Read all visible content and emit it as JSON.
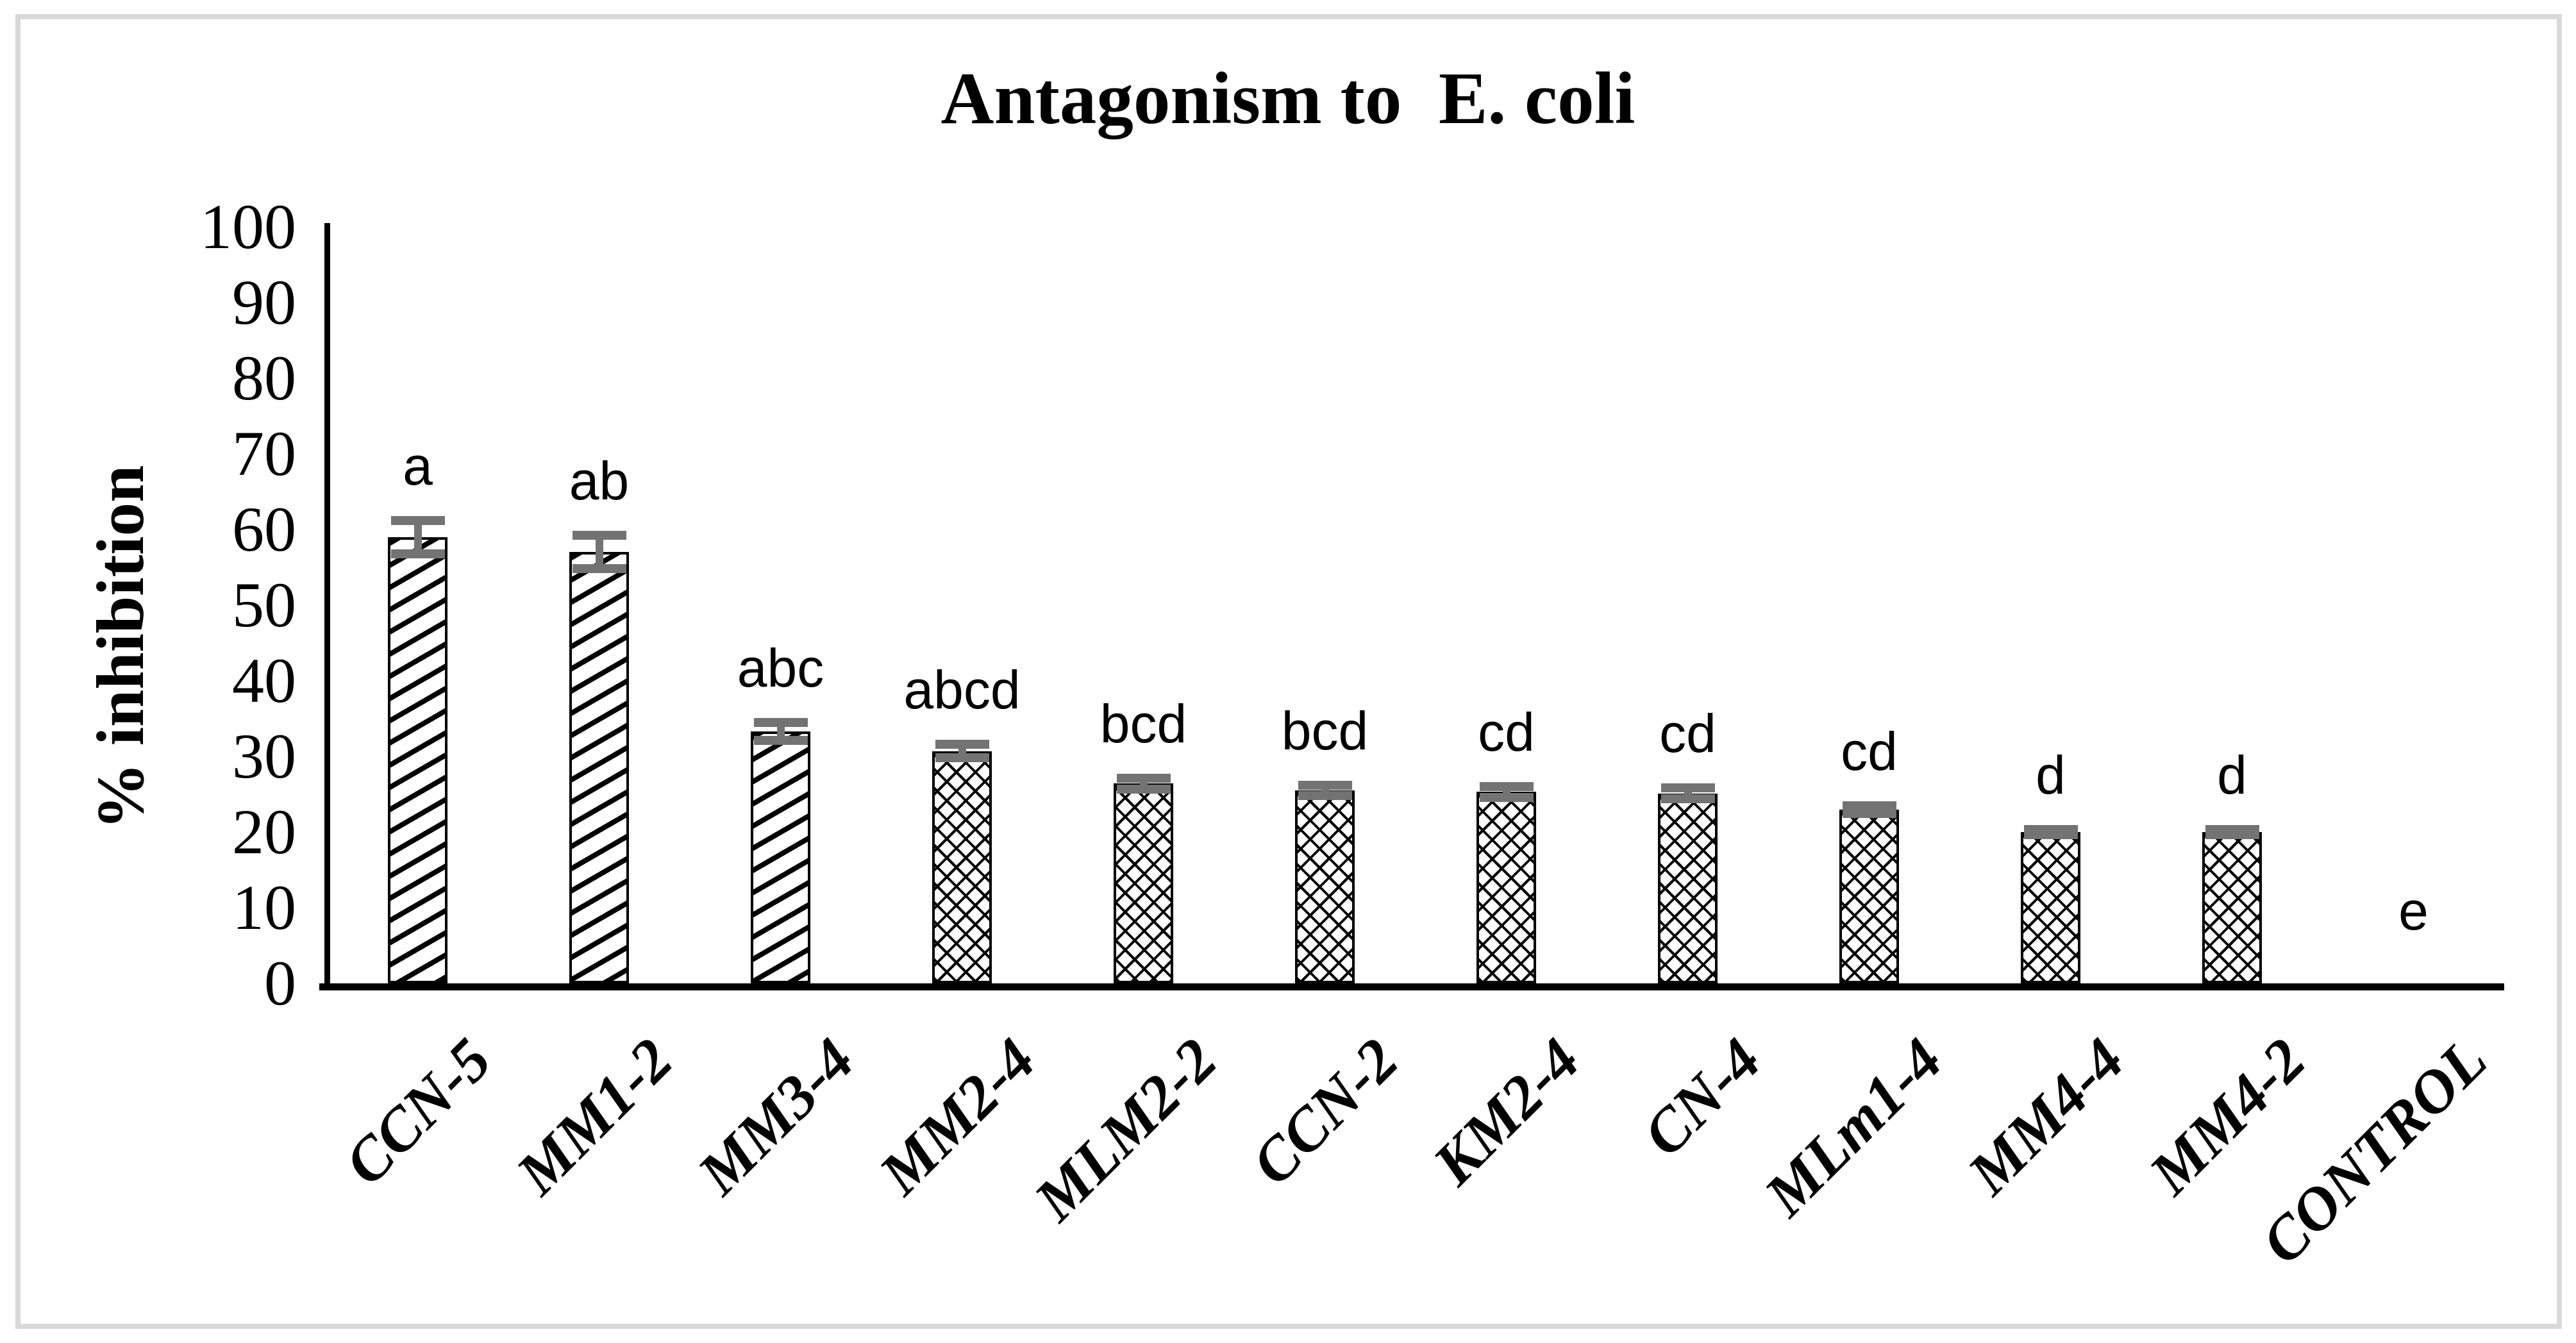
{
  "figure": {
    "background": "#ffffff",
    "border_color": "#d9d9d9"
  },
  "chart_data": {
    "type": "bar",
    "title": "Antagonism to  E. coli",
    "xlabel": "",
    "ylabel": "% inhibition",
    "ylim": [
      0,
      100
    ],
    "yticks": [
      0,
      10,
      20,
      30,
      40,
      50,
      60,
      70,
      80,
      90,
      100
    ],
    "grid": false,
    "legend_position": "none",
    "bar_fill": "#ffffff",
    "bar_edge": "#000000",
    "error_bar_color": "#737373",
    "categories": [
      "CCN-5",
      "MM1-2",
      "MM3-4",
      "MM2-4",
      "MLM2-2",
      "CCN-2",
      "KM2-4",
      "CN-4",
      "MLm1-4",
      "MM4-4",
      "MM4-2",
      "CONTROL"
    ],
    "values": [
      59,
      57,
      33.3,
      30.7,
      26.4,
      25.5,
      25.3,
      25.1,
      23,
      20,
      20,
      0
    ],
    "errors": [
      2.8,
      2.8,
      1.8,
      1.5,
      1.3,
      1.3,
      1.3,
      1.3,
      1.1,
      0.9,
      0.9,
      0
    ],
    "significance_letters": [
      "a",
      "ab",
      "abc",
      "abcd",
      "bcd",
      "bcd",
      "cd",
      "cd",
      "cd",
      "d",
      "d",
      "e"
    ],
    "bar_patterns": [
      "diagonal-stripes",
      "diagonal-stripes",
      "diagonal-stripes",
      "crosshatch",
      "crosshatch",
      "crosshatch",
      "crosshatch",
      "crosshatch",
      "crosshatch",
      "crosshatch",
      "crosshatch",
      "none"
    ]
  }
}
